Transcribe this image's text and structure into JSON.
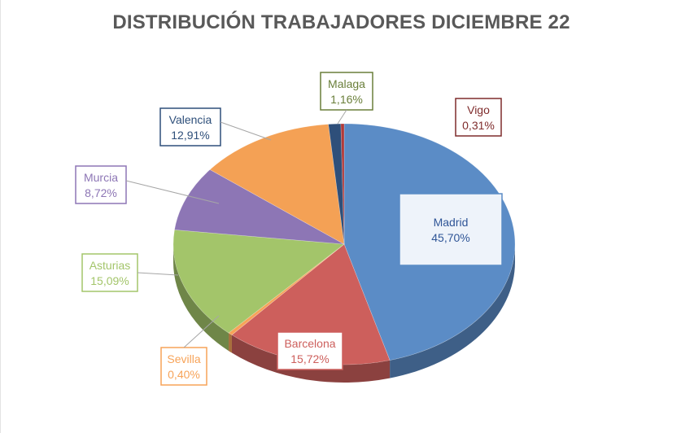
{
  "chart_data": {
    "type": "pie",
    "title": "DISTRIBUCIÓN TRABAJADORES DICIEMBRE  22",
    "slices": [
      {
        "name": "Madrid",
        "value": 45.7,
        "label": "45,70%",
        "color": "#5b8cc6",
        "border": "#5b8cc6"
      },
      {
        "name": "Barcelona",
        "value": 15.72,
        "label": "15,72%",
        "color": "#cd5f5c",
        "border": "#cd5f5c"
      },
      {
        "name": "Sevilla",
        "value": 0.4,
        "label": "0,40%",
        "color": "#f7a358",
        "border": "#f7a358"
      },
      {
        "name": "Asturias",
        "value": 15.09,
        "label": "15,09%",
        "color": "#a3c56a",
        "border": "#a3c56a"
      },
      {
        "name": "Murcia",
        "value": 8.72,
        "label": "8,72%",
        "color": "#8d76b5",
        "border": "#8d76b5"
      },
      {
        "name": "Valencia",
        "value": 12.91,
        "label": "12,91%",
        "color": "#f4a155",
        "border": "#2e4f7a"
      },
      {
        "name": "Malaga",
        "value": 1.16,
        "label": "1,16%",
        "color": "#2e4f7a",
        "border": "#6a7f3a"
      },
      {
        "name": "Vigo",
        "value": 0.31,
        "label": "0,31%",
        "color": "#b03a3a",
        "border": "#7f2c2c"
      }
    ]
  }
}
